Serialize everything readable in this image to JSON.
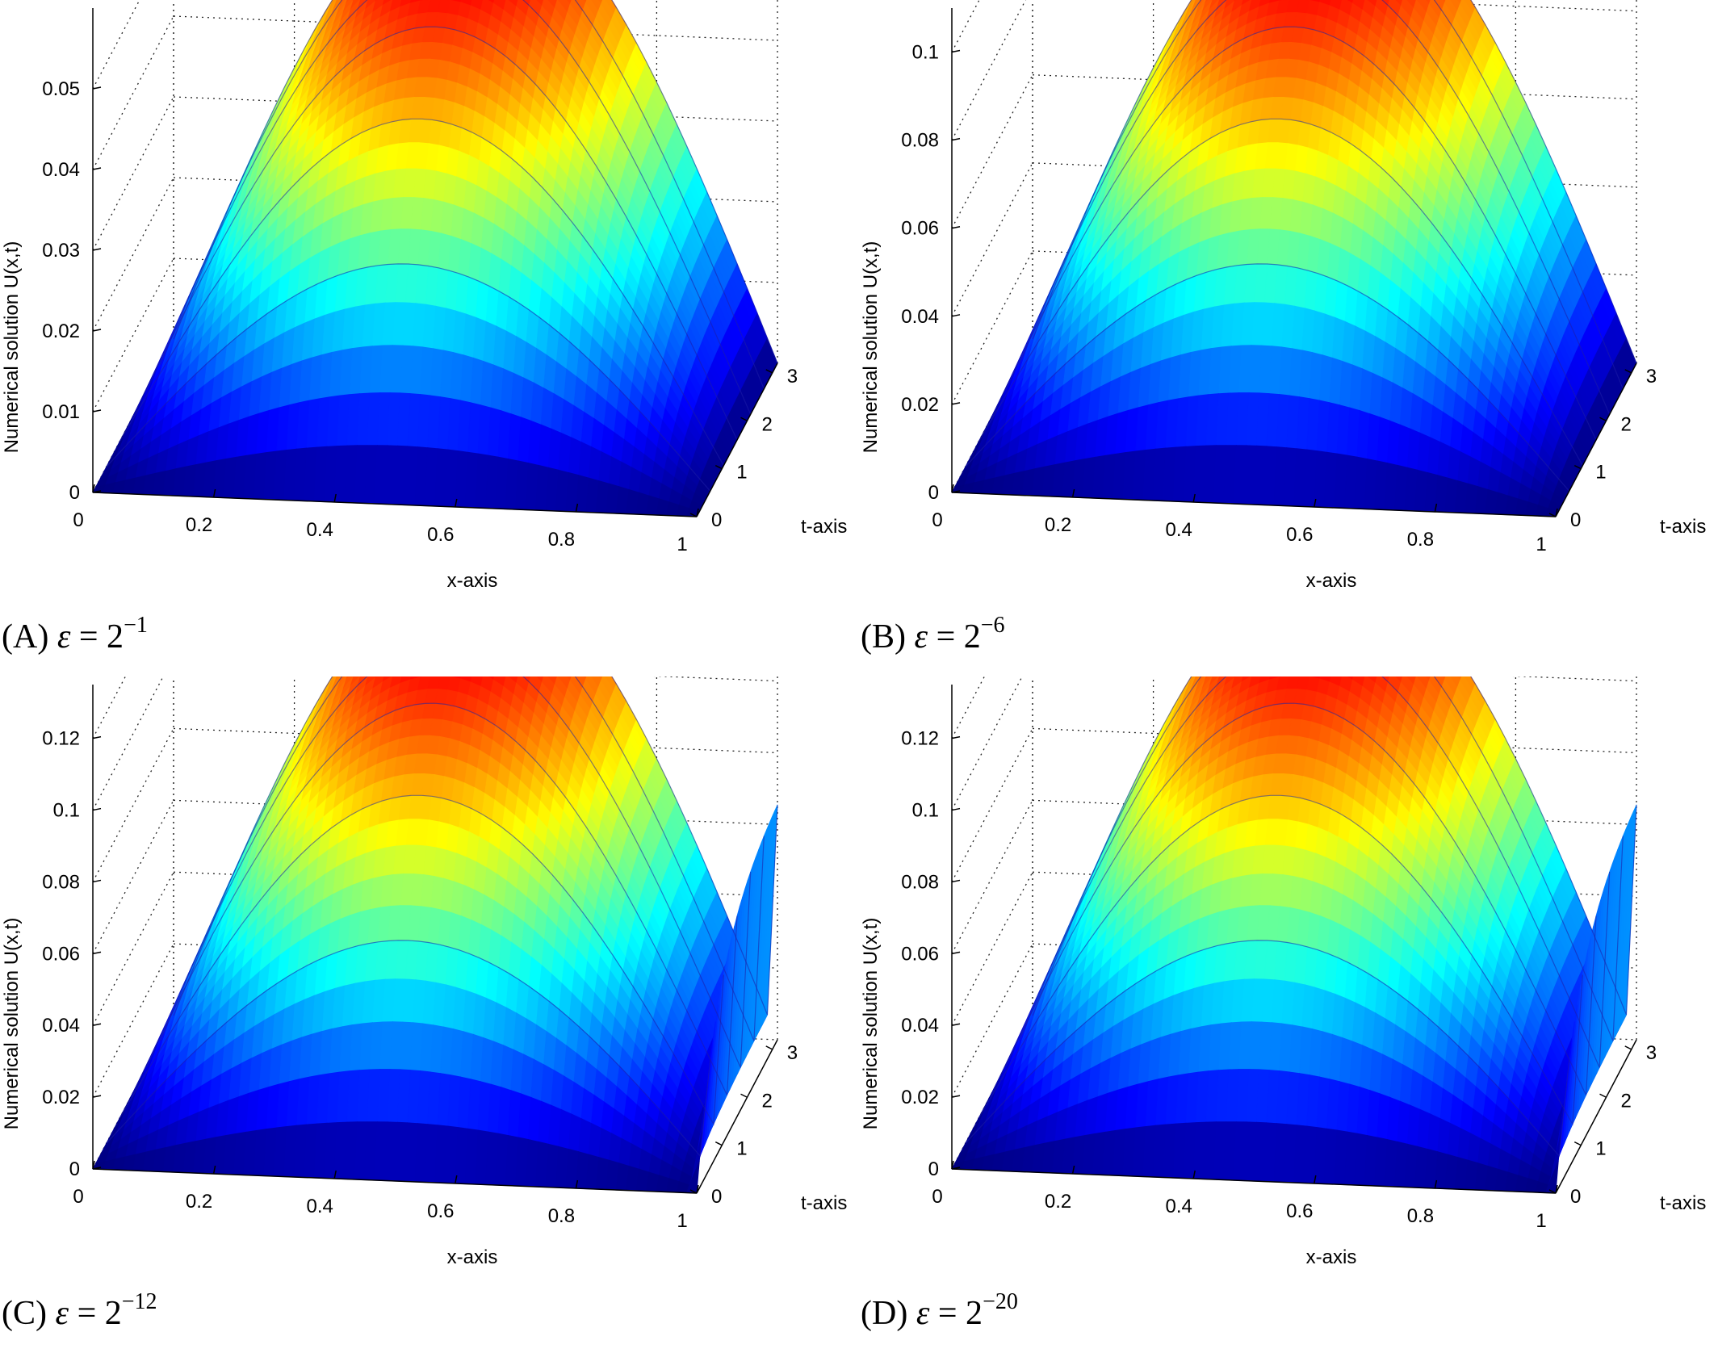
{
  "chart_data": [
    {
      "type": "surface",
      "panel": "A",
      "caption_letter": "(A)",
      "caption_symbol": "ε",
      "caption_eq": "= 2",
      "caption_exp": "−1",
      "zlabel": "Numerical solution U(x,t)",
      "xlabel": "x-axis",
      "ylabel": "t-axis",
      "x_ticks": [
        "0",
        "0.2",
        "0.4",
        "0.6",
        "0.8",
        "1"
      ],
      "t_ticks": [
        "0",
        "1",
        "2",
        "3"
      ],
      "z_ticks": [
        "0",
        "0.01",
        "0.02",
        "0.03",
        "0.04",
        "0.05"
      ],
      "z_max": 0.06,
      "peak": 0.06,
      "boundary_layer": false,
      "grid": true,
      "colormap": "jet"
    },
    {
      "type": "surface",
      "panel": "B",
      "caption_letter": "(B)",
      "caption_symbol": "ε",
      "caption_eq": "= 2",
      "caption_exp": "−6",
      "zlabel": "Numerical solution U(x,t)",
      "xlabel": "x-axis",
      "ylabel": "t-axis",
      "x_ticks": [
        "0",
        "0.2",
        "0.4",
        "0.6",
        "0.8",
        "1"
      ],
      "t_ticks": [
        "0",
        "1",
        "2",
        "3"
      ],
      "z_ticks": [
        "0",
        "0.02",
        "0.04",
        "0.06",
        "0.08",
        "0.1"
      ],
      "z_max": 0.11,
      "peak": 0.11,
      "boundary_layer": false,
      "grid": true,
      "colormap": "jet"
    },
    {
      "type": "surface",
      "panel": "C",
      "caption_letter": "(C)",
      "caption_symbol": "ε",
      "caption_eq": "= 2",
      "caption_exp": "−12",
      "zlabel": "Numerical solution U(x,t)",
      "xlabel": "x-axis",
      "ylabel": "t-axis",
      "x_ticks": [
        "0",
        "0.2",
        "0.4",
        "0.6",
        "0.8",
        "1"
      ],
      "t_ticks": [
        "0",
        "1",
        "2",
        "3"
      ],
      "z_ticks": [
        "0",
        "0.02",
        "0.04",
        "0.06",
        "0.08",
        "0.1",
        "0.12"
      ],
      "z_max": 0.135,
      "peak": 0.135,
      "boundary_layer": true,
      "grid": true,
      "colormap": "jet"
    },
    {
      "type": "surface",
      "panel": "D",
      "caption_letter": "(D)",
      "caption_symbol": "ε",
      "caption_eq": "= 2",
      "caption_exp": "−20",
      "zlabel": "Numerical solution U(x,t)",
      "xlabel": "x-axis",
      "ylabel": "t-axis",
      "x_ticks": [
        "0",
        "0.2",
        "0.4",
        "0.6",
        "0.8",
        "1"
      ],
      "t_ticks": [
        "0",
        "1",
        "2",
        "3"
      ],
      "z_ticks": [
        "0",
        "0.02",
        "0.04",
        "0.06",
        "0.08",
        "0.1",
        "0.12"
      ],
      "z_max": 0.135,
      "peak": 0.135,
      "boundary_layer": true,
      "grid": true,
      "colormap": "jet"
    }
  ]
}
